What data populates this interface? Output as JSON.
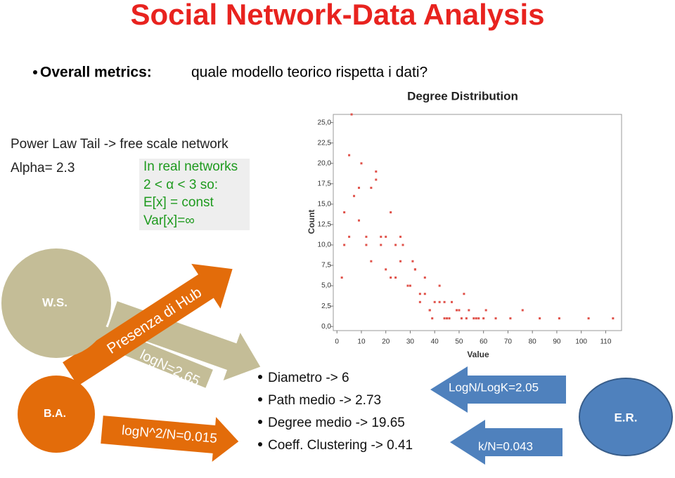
{
  "title": "Social Network-Data Analysis",
  "bullet": {
    "label": "Overall metrics:",
    "text": "quale modello teorico rispetta i dati?"
  },
  "power_law": {
    "line1": "Power Law Tail -> free scale network",
    "line2": "Alpha= 2.3"
  },
  "note_box": [
    "In real networks",
    "2 < α < 3 so:",
    "E[x] = const",
    "Var[x]=∞"
  ],
  "chart_data": {
    "type": "scatter",
    "title": "Degree Distribution",
    "x_label": "Value",
    "y_label": "Count",
    "color": "#e0524a",
    "x": [
      2,
      3,
      3,
      5,
      5,
      6,
      7,
      9,
      9,
      10,
      12,
      12,
      14,
      14,
      16,
      16,
      18,
      18,
      20,
      20,
      22,
      22,
      24,
      24,
      26,
      26,
      27,
      29,
      30,
      31,
      32,
      32,
      34,
      34,
      36,
      36,
      38,
      38,
      39,
      40,
      42,
      42,
      44,
      44,
      45,
      46,
      47,
      49,
      50,
      51,
      52,
      53,
      54,
      56,
      57,
      58,
      60,
      61,
      65,
      71,
      76,
      83,
      91,
      103,
      113
    ],
    "values": [
      6,
      10,
      14,
      11,
      21,
      26,
      16,
      13,
      17,
      20,
      10,
      11,
      17,
      8,
      18,
      19,
      10,
      11,
      7,
      11,
      6,
      14,
      10,
      6,
      11,
      8,
      10,
      5,
      5,
      8,
      7,
      7,
      3,
      4,
      6,
      4,
      2,
      2,
      1,
      3,
      5,
      3,
      1,
      3,
      1,
      1,
      3,
      2,
      2,
      1,
      4,
      1,
      2,
      1,
      1,
      1,
      1,
      2,
      1,
      1,
      2,
      1,
      1,
      1,
      1
    ],
    "xlim": [
      -1.5,
      116.5
    ],
    "ylim": [
      -0.5,
      26
    ],
    "xticks": [
      0,
      10,
      20,
      30,
      40,
      50,
      60,
      70,
      80,
      90,
      100,
      110
    ],
    "yticks": [
      {
        "value": 0,
        "label": "0,0"
      },
      {
        "value": 2.5,
        "label": "2,5"
      },
      {
        "value": 5,
        "label": "5,0"
      },
      {
        "value": 7.5,
        "label": "7,5"
      },
      {
        "value": 10,
        "label": "10,0"
      },
      {
        "value": 12.5,
        "label": "12,5"
      },
      {
        "value": 15,
        "label": "15,0"
      },
      {
        "value": 17.5,
        "label": "17,5"
      },
      {
        "value": 20,
        "label": "20,0"
      },
      {
        "value": 22.5,
        "label": "22,5"
      },
      {
        "value": 25,
        "label": "25,0"
      }
    ]
  },
  "models": {
    "ws": "W.S.",
    "ba": "B.A.",
    "er": "E.R."
  },
  "arrows": {
    "hub": "Presenza di Hub",
    "logn": "logN=2.65",
    "logn2": "logN^2/N=0.015",
    "logk": "LogN/LogK=2.05",
    "kn": "k/N=0.043"
  },
  "metrics": [
    "Diametro -> 6",
    "Path medio -> 2.73",
    "Degree medio -> 19.65",
    "Coeff. Clustering -> 0.41"
  ]
}
